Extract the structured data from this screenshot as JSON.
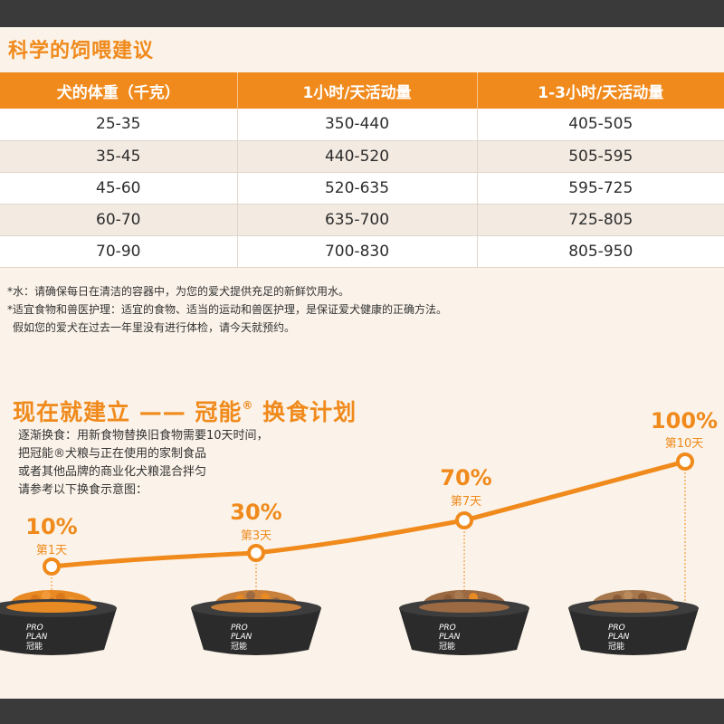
{
  "feeding": {
    "title": "科学的饲喂建议",
    "headers": [
      "犬的体重（千克）",
      "1小时/天活动量",
      "1-3小时/天活动量"
    ],
    "rows": [
      [
        "25-35",
        "350-440",
        "405-505"
      ],
      [
        "35-45",
        "440-520",
        "505-595"
      ],
      [
        "45-60",
        "520-635",
        "595-725"
      ],
      [
        "60-70",
        "635-700",
        "725-805"
      ],
      [
        "70-90",
        "700-830",
        "805-950"
      ]
    ],
    "notes": [
      "*水：请确保每日在清洁的容器中，为您的爱犬提供充足的新鲜饮用水。",
      "*适宜食物和兽医护理：适宜的食物、适当的运动和兽医护理，是保证爱犬健康的正确方法。",
      "假如您的爱犬在过去一年里没有进行体检，请今天就预约。"
    ]
  },
  "plan": {
    "title_prefix": "现在就建立 —— 冠能",
    "title_reg": "®",
    "title_suffix": " 换食计划",
    "desc": [
      "逐渐换食：用新食物替换旧食物需要10天时间，",
      "把冠能®犬粮与正在使用的家制食品",
      "或者其他品牌的商业化犬粮混合拌匀",
      "请参考以下换食示意图："
    ],
    "stages": [
      {
        "percent": "10%",
        "day": "第1天",
        "value": 10
      },
      {
        "percent": "30%",
        "day": "第3天",
        "value": 30
      },
      {
        "percent": "70%",
        "day": "第7天",
        "value": 70
      },
      {
        "percent": "100%",
        "day": "第10天",
        "value": 100
      }
    ],
    "bowl_brand": [
      "PRO",
      "PLAN",
      "冠能"
    ],
    "colors": {
      "accent": "#f08a1c",
      "bowl": "#2b2b2b",
      "old_food": "#e88a24",
      "new_food": "#9b6a42"
    }
  }
}
